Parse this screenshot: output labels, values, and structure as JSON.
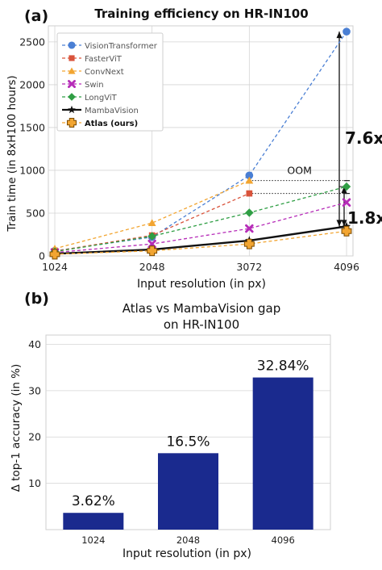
{
  "panel_a": {
    "label": "(a)",
    "title": "Training efficiency on HR-IN100",
    "annotations": {
      "oom": "OOM",
      "gap_top": "7.6x",
      "gap_bottom": "1.8x"
    }
  },
  "panel_b": {
    "label": "(b)",
    "title_line1": "Atlas vs MambaVision gap",
    "title_line2": "on HR-IN100"
  },
  "chart_data": [
    {
      "type": "line",
      "title": "Training efficiency on HR-IN100",
      "xlabel": "Input resolution (in px)",
      "ylabel": "Train time (in 8xH100 hours)",
      "x": [
        1024,
        2048,
        3072,
        4096
      ],
      "xticks": [
        "1024",
        "2048",
        "3072",
        "4096"
      ],
      "yticks": [
        "0",
        "500",
        "1000",
        "1500",
        "2000",
        "2500"
      ],
      "ylim": [
        0,
        2650
      ],
      "grid": true,
      "legend": "top-left",
      "series": [
        {
          "name": "VisionTransformer",
          "values": [
            60,
            220,
            940,
            2620
          ],
          "color": "#4a7fd4",
          "marker": "circle",
          "dashed": true
        },
        {
          "name": "FasterViT",
          "values": [
            55,
            240,
            730,
            null
          ],
          "color": "#d9533b",
          "marker": "square",
          "dashed": true
        },
        {
          "name": "ConvNext",
          "values": [
            85,
            385,
            880,
            null
          ],
          "color": "#f2a531",
          "marker": "triangle",
          "dashed": true
        },
        {
          "name": "Swin",
          "values": [
            40,
            140,
            320,
            625
          ],
          "color": "#b62cb8",
          "marker": "x",
          "dashed": true
        },
        {
          "name": "LongViT",
          "values": [
            50,
            230,
            505,
            810
          ],
          "color": "#2f9e44",
          "marker": "diamond",
          "dashed": true
        },
        {
          "name": "MambaVision",
          "values": [
            25,
            75,
            180,
            345
          ],
          "color": "#111111",
          "marker": "star",
          "dashed": false
        },
        {
          "name": "Atlas (ours)",
          "values": [
            20,
            60,
            140,
            290
          ],
          "color": "#f2a531",
          "marker": "plus",
          "dashed": true
        }
      ]
    },
    {
      "type": "bar",
      "title": "Atlas vs MambaVision gap on HR-IN100",
      "xlabel": "Input resolution (in px)",
      "ylabel": "Δ top-1 accuracy (in %)",
      "categories": [
        "1024",
        "2048",
        "4096"
      ],
      "values": [
        3.62,
        16.5,
        32.84
      ],
      "data_labels": [
        "3.62%",
        "16.5%",
        "32.84%"
      ],
      "yticks": [
        "10",
        "20",
        "30",
        "40"
      ],
      "ylim": [
        0,
        42
      ],
      "color": "#1a2a8e"
    }
  ]
}
